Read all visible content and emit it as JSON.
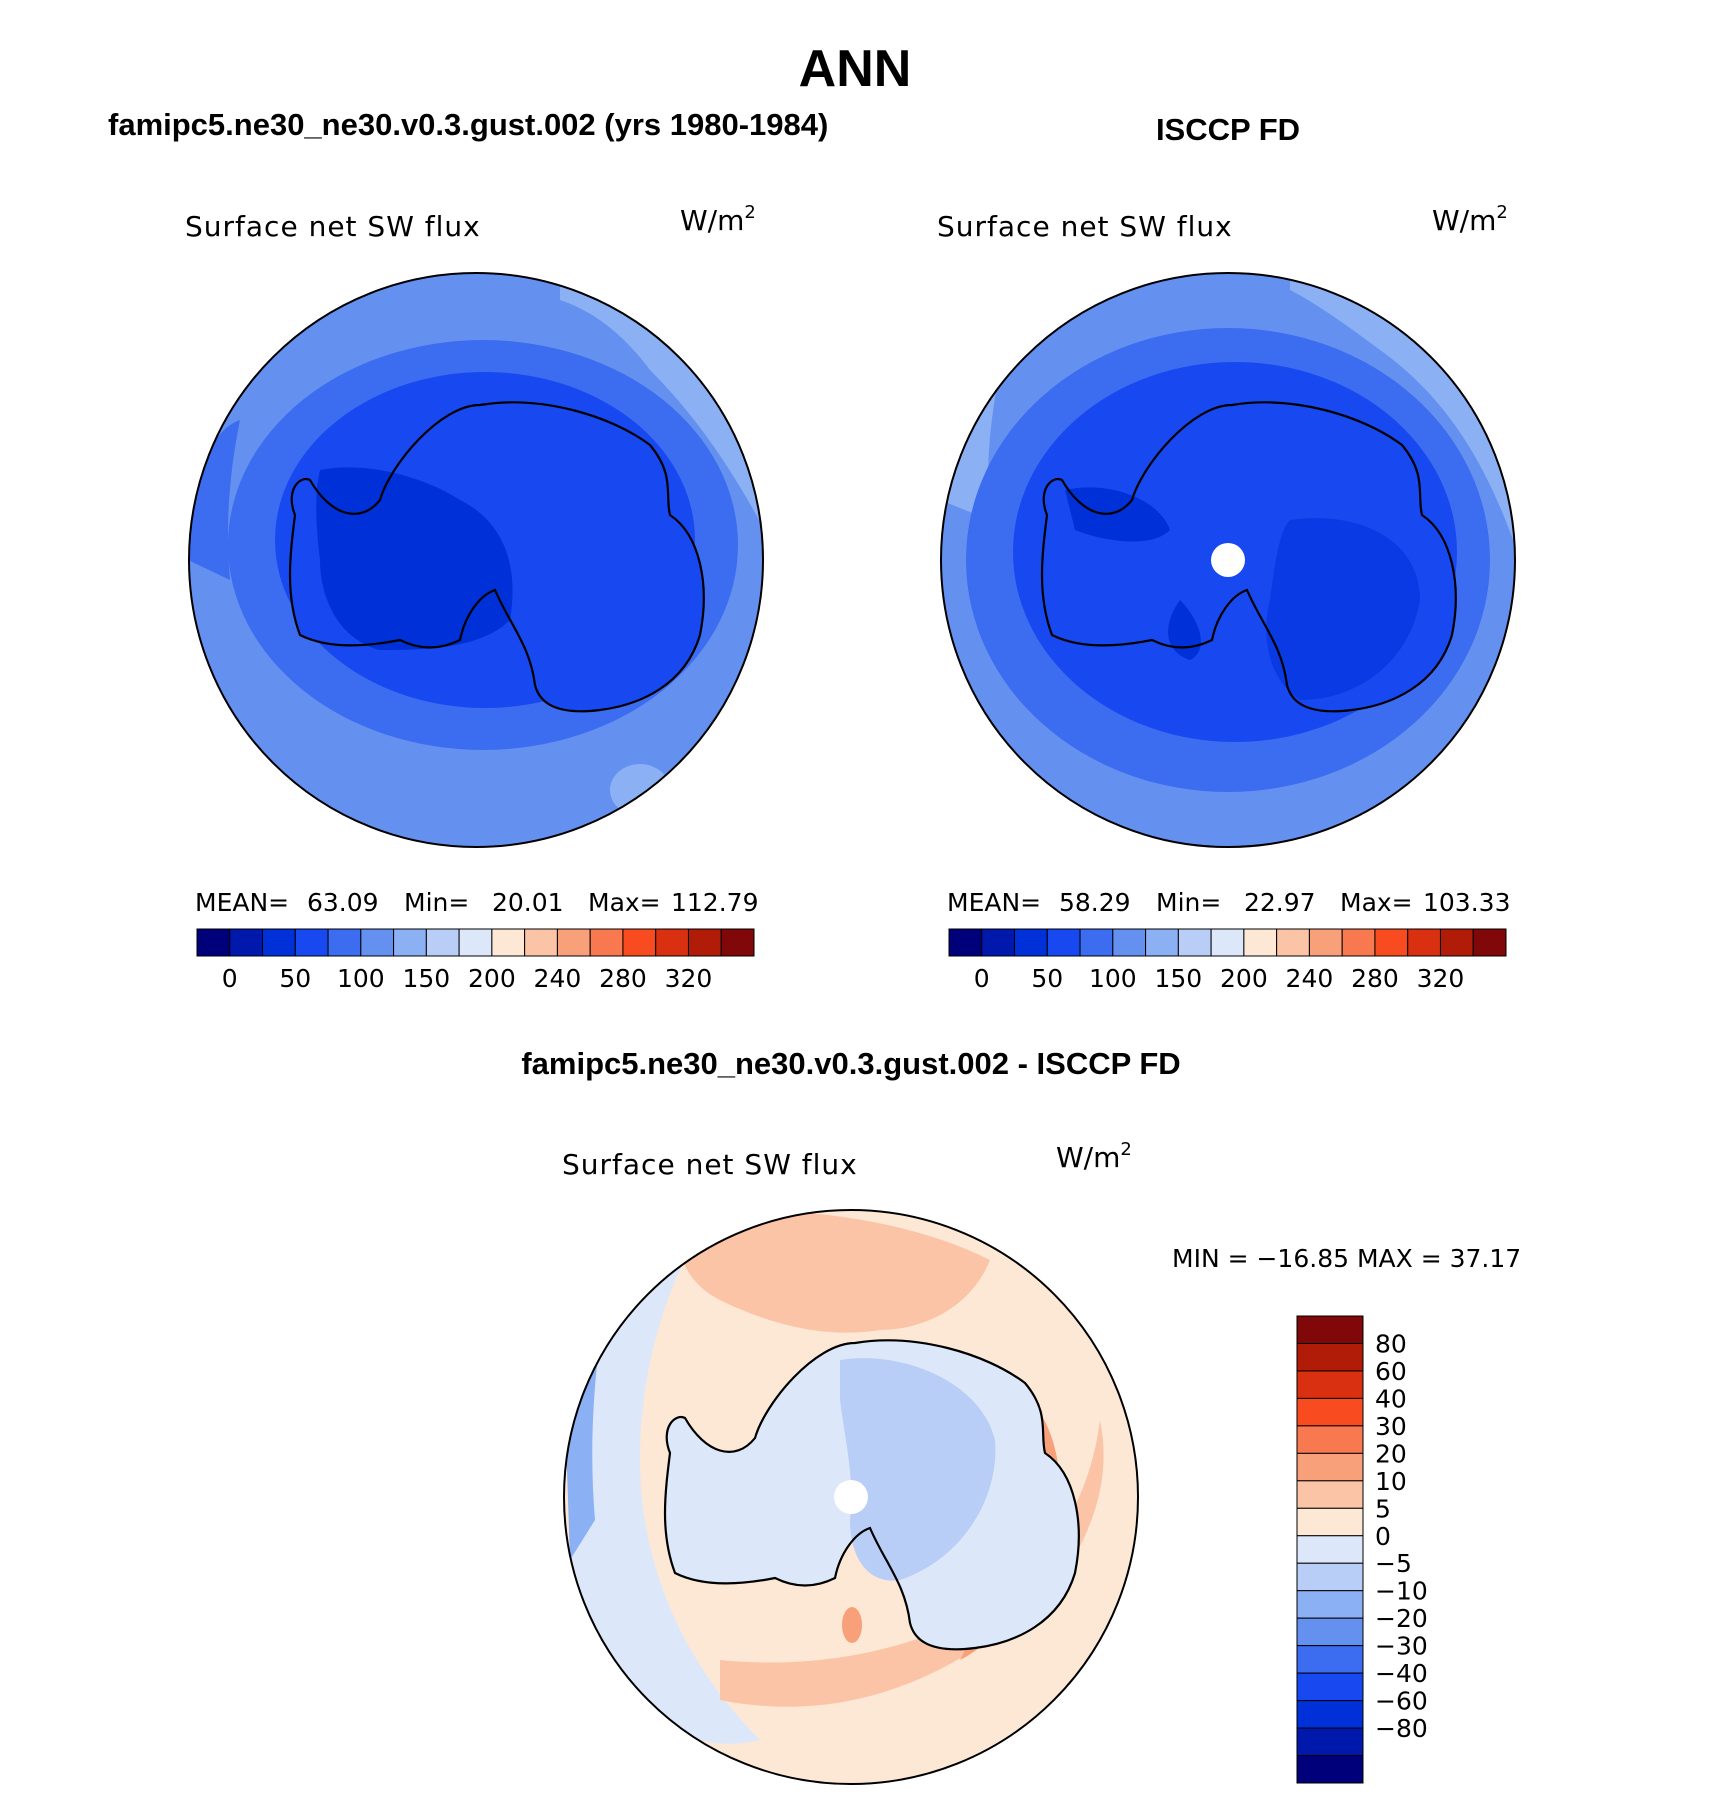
{
  "title": "ANN",
  "panels": [
    {
      "id": "model",
      "heading": "famipc5.ne30_ne30.v0.3.gust.002 (yrs 1980-1984)",
      "variable": "Surface net SW flux",
      "units_base": "W/m",
      "units_exp": "2",
      "stats": {
        "mean_label": "MEAN=",
        "mean": "63.09",
        "min_label": "Min=",
        "min": "20.01",
        "max_label": "Max=",
        "max": "112.79"
      },
      "pole_hole": false
    },
    {
      "id": "obs",
      "heading": "ISCCP FD",
      "variable": "Surface net SW flux",
      "units_base": "W/m",
      "units_exp": "2",
      "stats": {
        "mean_label": "MEAN=",
        "mean": "58.29",
        "min_label": "Min=",
        "min": "22.97",
        "max_label": "Max=",
        "max": "103.33"
      },
      "pole_hole": true
    }
  ],
  "abs_colorbar": {
    "colors": [
      "#00007a",
      "#0018ac",
      "#0030d8",
      "#1848f0",
      "#3c6cf0",
      "#6490f0",
      "#8cb0f4",
      "#b8cef6",
      "#dce8fa",
      "#fde8d6",
      "#fcc4a6",
      "#f8a07a",
      "#f87850",
      "#f84c20",
      "#d83010",
      "#b01c08",
      "#800808"
    ],
    "labels": [
      "0",
      "50",
      "100",
      "150",
      "200",
      "240",
      "280",
      "320"
    ]
  },
  "diff": {
    "heading": "famipc5.ne30_ne30.v0.3.gust.002 - ISCCP FD",
    "variable": "Surface net SW flux",
    "units_base": "W/m",
    "units_exp": "2",
    "minmax": "MIN = −16.85 MAX =   37.17",
    "colorbar": {
      "colors": [
        "#800808",
        "#b01c08",
        "#d83010",
        "#f84c20",
        "#f87850",
        "#f8a07a",
        "#fcc4a6",
        "#fde8d6",
        "#dce8fa",
        "#b8cef6",
        "#8cb0f4",
        "#6490f0",
        "#3c6cf0",
        "#1848f0",
        "#0030d8",
        "#0018ac",
        "#00007a"
      ],
      "labels": [
        "80",
        "60",
        "40",
        "30",
        "20",
        "10",
        "5",
        "0",
        "−5",
        "−10",
        "−20",
        "−30",
        "−40",
        "−60",
        "−80"
      ]
    }
  }
}
